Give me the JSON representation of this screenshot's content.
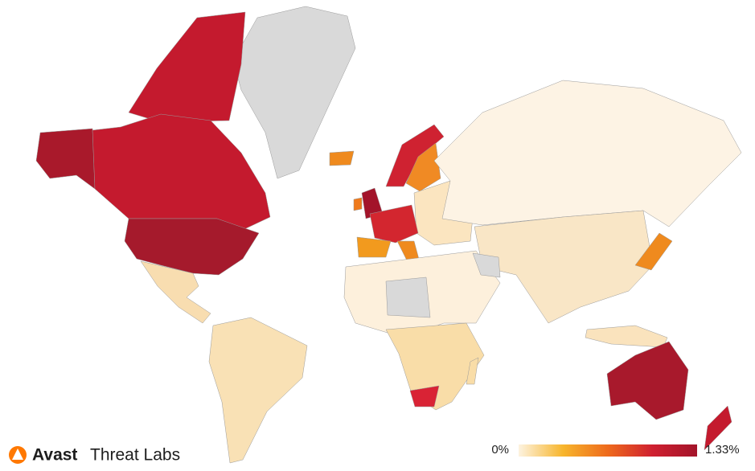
{
  "brand": {
    "name": "Avast",
    "product": "Threat Labs"
  },
  "legend": {
    "min_label": "0%",
    "max_label": "1.33%",
    "colors": [
      "#fdf3e0",
      "#f7b52c",
      "#ee6a1c",
      "#cf2030",
      "#a3142a"
    ]
  }
}
